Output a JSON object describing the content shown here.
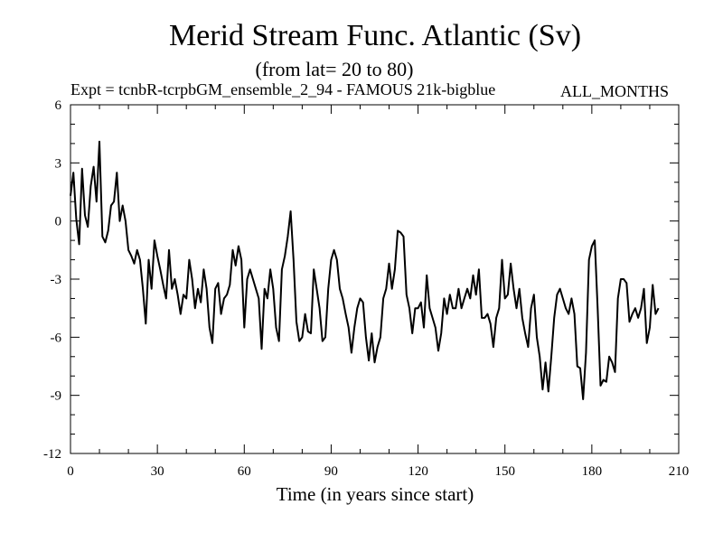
{
  "chart_data": {
    "type": "line",
    "title": "Merid Stream Func. Atlantic (Sv)",
    "subtitle": "(from lat= 20 to 80)",
    "experiment_label": "Expt = tcnbR-tcrpbGM_ensemble_2_94 - FAMOUS 21k-bigblue",
    "period_label": "ALL_MONTHS",
    "xlabel": "Time (in years since start)",
    "ylabel": "",
    "xlim": [
      0,
      210
    ],
    "ylim": [
      -12,
      6
    ],
    "xticks": [
      0,
      30,
      60,
      90,
      120,
      150,
      180,
      210
    ],
    "yticks": [
      6,
      3,
      0,
      -3,
      -6,
      -9,
      -12
    ],
    "grid": false,
    "series": [
      {
        "name": "Merid Stream Func. Atlantic",
        "x_start": 0,
        "x_step": 1,
        "values": [
          1.3,
          2.5,
          0.1,
          -1.2,
          2.7,
          0.3,
          -0.3,
          1.8,
          2.8,
          1.0,
          4.1,
          -0.8,
          -1.1,
          -0.5,
          0.8,
          1.0,
          2.5,
          0.0,
          0.8,
          0.0,
          -1.5,
          -1.8,
          -2.2,
          -1.5,
          -2.0,
          -3.5,
          -5.3,
          -2.0,
          -3.5,
          -1.0,
          -1.8,
          -2.5,
          -3.3,
          -4.0,
          -1.5,
          -3.5,
          -3.0,
          -3.8,
          -4.8,
          -3.8,
          -4.0,
          -2.0,
          -3.0,
          -4.5,
          -3.5,
          -4.2,
          -2.5,
          -3.5,
          -5.5,
          -6.3,
          -3.5,
          -3.2,
          -4.8,
          -4.0,
          -3.8,
          -3.3,
          -1.5,
          -2.3,
          -1.3,
          -2.0,
          -5.5,
          -3.0,
          -2.5,
          -3.0,
          -3.5,
          -4.0,
          -6.6,
          -3.5,
          -4.0,
          -2.5,
          -3.5,
          -5.5,
          -6.2,
          -2.5,
          -1.8,
          -0.8,
          0.5,
          -2.0,
          -5.2,
          -6.2,
          -6.0,
          -4.8,
          -5.7,
          -5.8,
          -2.5,
          -3.5,
          -4.5,
          -6.2,
          -6.0,
          -3.5,
          -2.0,
          -1.5,
          -2.0,
          -3.5,
          -4.0,
          -4.8,
          -5.5,
          -6.8,
          -5.5,
          -4.5,
          -4.0,
          -4.2,
          -6.0,
          -7.2,
          -5.8,
          -7.3,
          -6.5,
          -6.0,
          -4.0,
          -3.5,
          -2.2,
          -3.5,
          -2.5,
          -0.5,
          -0.6,
          -0.8,
          -3.8,
          -4.5,
          -5.8,
          -4.5,
          -4.5,
          -4.2,
          -5.5,
          -2.8,
          -4.5,
          -5.0,
          -5.5,
          -6.7,
          -5.8,
          -4.0,
          -4.8,
          -3.8,
          -4.5,
          -4.5,
          -3.5,
          -4.5,
          -4.0,
          -3.5,
          -4.0,
          -2.8,
          -3.8,
          -2.5,
          -5.0,
          -5.0,
          -4.8,
          -5.3,
          -6.5,
          -5.0,
          -4.5,
          -2.0,
          -4.0,
          -3.8,
          -2.2,
          -3.5,
          -4.5,
          -3.5,
          -5.0,
          -5.8,
          -6.5,
          -4.5,
          -3.8,
          -6.0,
          -7.0,
          -8.7,
          -7.3,
          -8.8,
          -7.0,
          -5.0,
          -3.8,
          -3.5,
          -4.0,
          -4.5,
          -4.8,
          -4.0,
          -4.8,
          -7.5,
          -7.6,
          -9.2,
          -6.8,
          -2.0,
          -1.3,
          -1.0,
          -4.5,
          -8.5,
          -8.2,
          -8.3,
          -7.0,
          -7.3,
          -7.8,
          -4.0,
          -3.0,
          -3.0,
          -3.2,
          -5.2,
          -4.8,
          -4.5,
          -5.0,
          -4.5,
          -3.5,
          -6.3,
          -5.5,
          -3.3,
          -4.8,
          -4.5
        ]
      }
    ]
  }
}
